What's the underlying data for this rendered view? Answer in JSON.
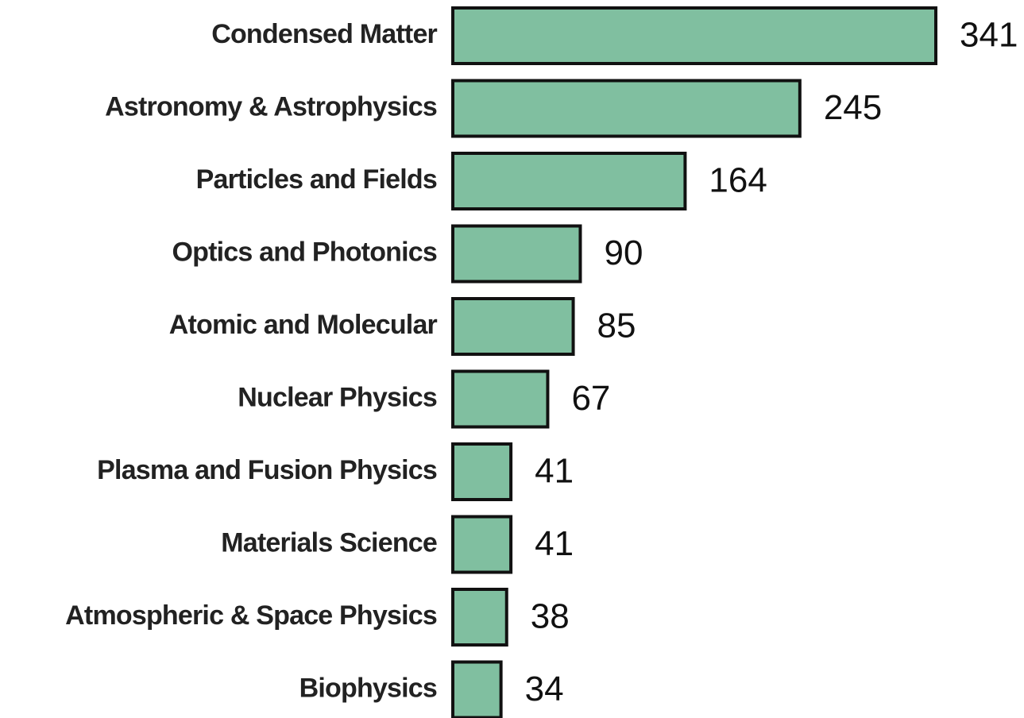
{
  "chart_data": {
    "type": "bar",
    "orientation": "horizontal",
    "color": "#80bfa0",
    "categories": [
      "Condensed Matter",
      "Astronomy & Astrophysics",
      "Particles and Fields",
      "Optics and Photonics",
      "Atomic and Molecular",
      "Nuclear Physics",
      "Plasma and Fusion Physics",
      "Materials Science",
      "Atmospheric & Space Physics",
      "Biophysics"
    ],
    "values": [
      341,
      245,
      164,
      90,
      85,
      67,
      41,
      41,
      38,
      34
    ]
  }
}
